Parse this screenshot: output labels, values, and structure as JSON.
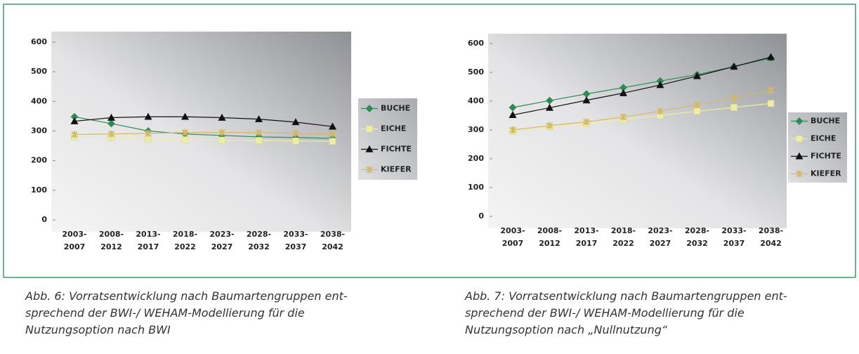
{
  "chart_data": [
    {
      "type": "line",
      "categories": [
        "2003-2007",
        "2008-2012",
        "2013-2017",
        "2018-2022",
        "2023-2027",
        "2028-2032",
        "2033-2037",
        "2038-2042"
      ],
      "ylim": [
        0,
        600
      ],
      "yticks": [
        0,
        100,
        200,
        300,
        400,
        500,
        600
      ],
      "series": [
        {
          "name": "BUCHE",
          "color": "#2e8b57",
          "marker": "diamond",
          "values": [
            348,
            325,
            300,
            290,
            285,
            280,
            278,
            275
          ]
        },
        {
          "name": "EICHE",
          "color": "#eeeea0",
          "marker": "square",
          "values": [
            280,
            278,
            273,
            270,
            269,
            268,
            266,
            265
          ]
        },
        {
          "name": "FICHTE",
          "color": "#111111",
          "marker": "triangle",
          "values": [
            333,
            345,
            348,
            348,
            345,
            340,
            330,
            315
          ]
        },
        {
          "name": "KIEFER",
          "color": "#d4b86a",
          "marker": "star",
          "values": [
            288,
            290,
            292,
            295,
            295,
            295,
            292,
            290
          ]
        }
      ],
      "legend": "right",
      "caption": [
        "Abb. 6: Vorratsentwicklung nach Baumartengruppen ent-",
        "sprechend der BWI-/ WEHAM-Modellierung für die",
        "Nutzungsoption nach BWI"
      ]
    },
    {
      "type": "line",
      "categories": [
        "2003-2007",
        "2008-2012",
        "2013-2017",
        "2018-2022",
        "2023-2027",
        "2028-2032",
        "2033-2037",
        "2038-2042"
      ],
      "ylim": [
        0,
        600
      ],
      "yticks": [
        0,
        100,
        200,
        300,
        400,
        500,
        600
      ],
      "series": [
        {
          "name": "BUCHE",
          "color": "#2e8b57",
          "marker": "diamond",
          "values": [
            378,
            402,
            425,
            447,
            470,
            492,
            520,
            550
          ]
        },
        {
          "name": "EICHE",
          "color": "#eeeea0",
          "marker": "square",
          "values": [
            295,
            310,
            322,
            336,
            350,
            365,
            378,
            392
          ]
        },
        {
          "name": "FICHTE",
          "color": "#111111",
          "marker": "triangle",
          "values": [
            352,
            377,
            403,
            428,
            456,
            487,
            520,
            553
          ]
        },
        {
          "name": "KIEFER",
          "color": "#d4b86a",
          "marker": "star",
          "values": [
            300,
            315,
            328,
            345,
            365,
            387,
            410,
            438
          ]
        }
      ],
      "legend": "right",
      "caption": [
        "Abb. 7: Vorratsentwicklung nach Baumartengruppen ent-",
        "sprechend der BWI-/ WEHAM-Modellierung für die",
        "Nutzungsoption nach „Nullnutzung“"
      ]
    }
  ]
}
